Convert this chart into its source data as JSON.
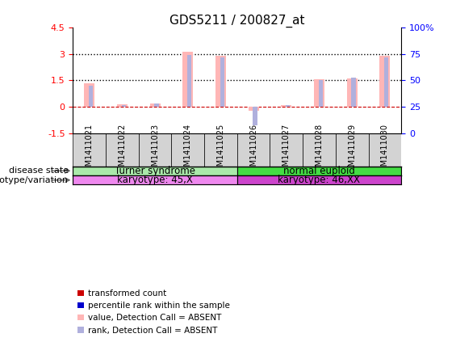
{
  "title": "GDS5211 / 200827_at",
  "samples": [
    "GSM1411021",
    "GSM1411022",
    "GSM1411023",
    "GSM1411024",
    "GSM1411025",
    "GSM1411026",
    "GSM1411027",
    "GSM1411028",
    "GSM1411029",
    "GSM1411030"
  ],
  "transformed_count": [
    1.35,
    0.15,
    0.2,
    3.1,
    2.9,
    -0.25,
    0.1,
    1.55,
    1.6,
    2.9
  ],
  "percentile_rank": [
    1.2,
    0.1,
    0.17,
    2.95,
    2.8,
    -1.05,
    0.08,
    1.5,
    1.65,
    2.8
  ],
  "bar_color_val": "#ffb6b6",
  "bar_color_rank": "#b0b0dd",
  "ylim_left": [
    -1.5,
    4.5
  ],
  "ylim_right": [
    0,
    100
  ],
  "yticks_left": [
    -1.5,
    0.0,
    1.5,
    3.0,
    4.5
  ],
  "yticks_right": [
    0,
    25,
    50,
    75,
    100
  ],
  "disease_state_groups": [
    {
      "label": "Turner syndrome",
      "start": 0,
      "end": 5,
      "color": "#aaeaaa"
    },
    {
      "label": "normal euploid",
      "start": 5,
      "end": 10,
      "color": "#44dd44"
    }
  ],
  "genotype_groups": [
    {
      "label": "karyotype: 45,X",
      "start": 0,
      "end": 5,
      "color": "#ee88ee"
    },
    {
      "label": "karyotype: 46,XX",
      "start": 5,
      "end": 10,
      "color": "#cc44cc"
    }
  ],
  "row_labels": [
    "disease state",
    "genotype/variation"
  ],
  "legend_items": [
    {
      "label": "transformed count",
      "color": "#cc0000"
    },
    {
      "label": "percentile rank within the sample",
      "color": "#0000cc"
    },
    {
      "label": "value, Detection Call = ABSENT",
      "color": "#ffb6b6"
    },
    {
      "label": "rank, Detection Call = ABSENT",
      "color": "#b0b0dd"
    }
  ],
  "bar_width": 0.32,
  "rank_bar_width": 0.13
}
